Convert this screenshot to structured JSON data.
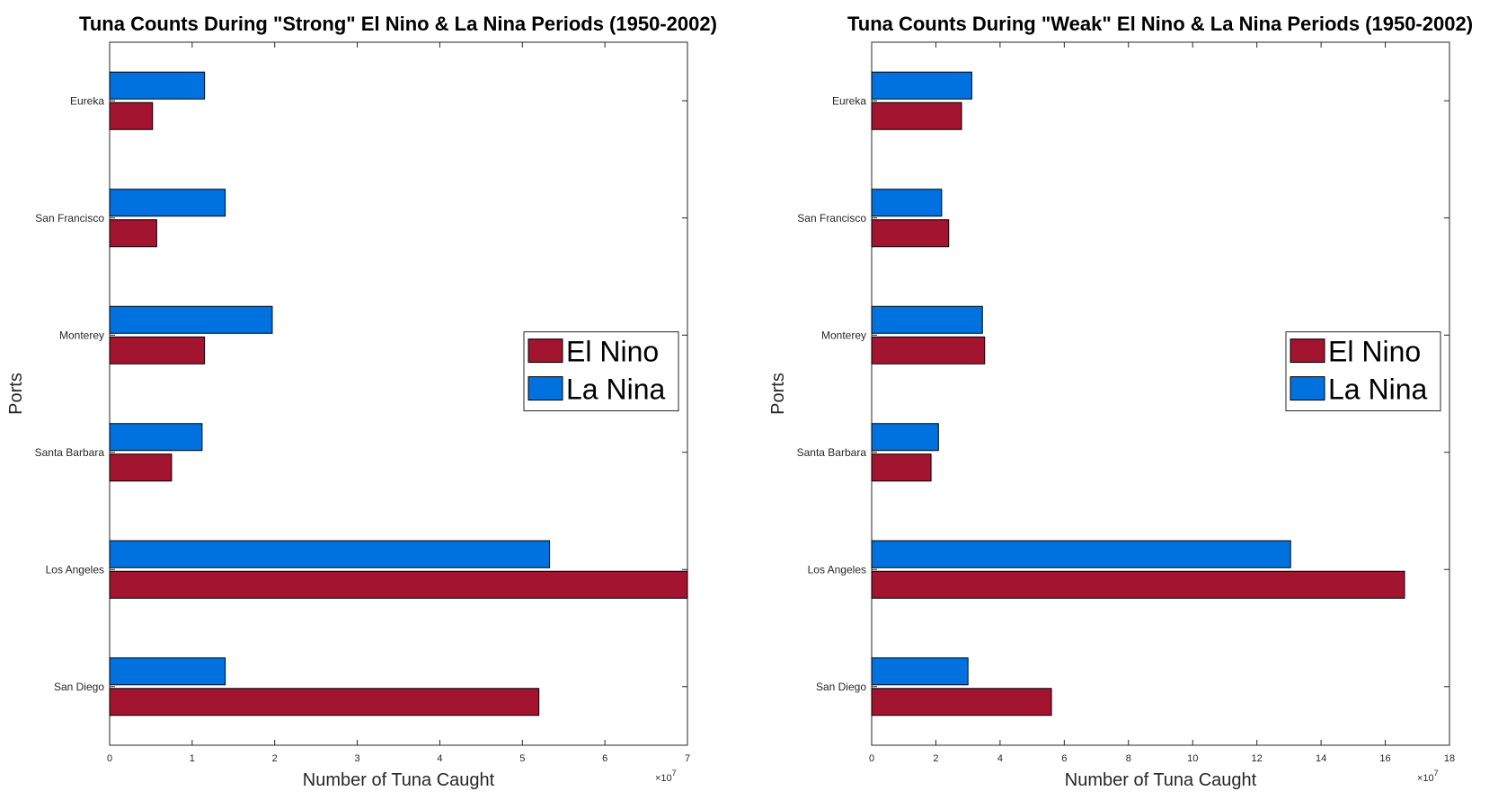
{
  "chart_data": [
    {
      "type": "bar",
      "orientation": "horizontal",
      "title": "Tuna Counts During \"Strong\" El Nino & La Nina Periods (1950-2002)",
      "xlabel": "Number of Tuna Caught",
      "ylabel": "Ports",
      "x_exponent": "×10",
      "x_exponent_power": "7",
      "xlim": [
        0,
        7
      ],
      "xticks": [
        "0",
        "1",
        "2",
        "3",
        "4",
        "5",
        "6",
        "7"
      ],
      "categories": [
        "San Diego",
        "Los Angeles",
        "Santa Barbara",
        "Monterey",
        "San Francisco",
        "Eureka"
      ],
      "series": [
        {
          "name": "El Nino",
          "color": "#a2142f",
          "values": [
            5.2,
            7.0,
            0.75,
            1.15,
            0.57,
            0.52
          ]
        },
        {
          "name": "La Nina",
          "color": "#0072e0",
          "values": [
            1.4,
            5.33,
            1.12,
            1.97,
            1.4,
            1.15
          ]
        }
      ],
      "legend_position": "right"
    },
    {
      "type": "bar",
      "orientation": "horizontal",
      "title": "Tuna Counts During \"Weak\" El Nino & La Nina Periods (1950-2002)",
      "xlabel": "Number of Tuna Caught",
      "ylabel": "Ports",
      "x_exponent": "×10",
      "x_exponent_power": "7",
      "xlim": [
        0,
        18
      ],
      "xticks": [
        "0",
        "2",
        "4",
        "6",
        "8",
        "10",
        "12",
        "14",
        "16",
        "18"
      ],
      "categories": [
        "San Diego",
        "Los Angeles",
        "Santa Barbara",
        "Monterey",
        "San Francisco",
        "Eureka"
      ],
      "series": [
        {
          "name": "El Nino",
          "color": "#a2142f",
          "values": [
            5.6,
            16.6,
            1.85,
            3.52,
            2.4,
            2.8
          ]
        },
        {
          "name": "La Nina",
          "color": "#0072e0",
          "values": [
            3.0,
            13.05,
            2.08,
            3.45,
            2.18,
            3.12
          ]
        }
      ],
      "legend_position": "right"
    }
  ]
}
